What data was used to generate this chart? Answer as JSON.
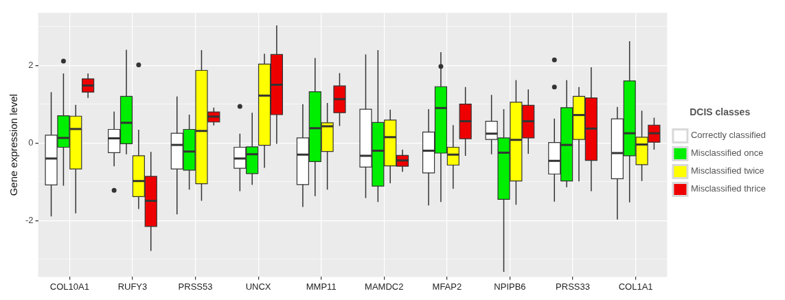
{
  "chart_data": {
    "type": "box",
    "ylabel": "Gene expression level",
    "legend_title": "DCIS classes",
    "legend": "right",
    "grid": true,
    "categories": [
      "COL10A1",
      "RUFY3",
      "PRSS53",
      "UNCX",
      "MMP11",
      "MAMDC2",
      "MFAP2",
      "NPIPB6",
      "PRSS33",
      "COL1A1"
    ],
    "ylim": [
      -3.45,
      3.35
    ],
    "yticks": [
      {
        "value": -3,
        "label": null
      },
      -2,
      {
        "value": -1,
        "label": null
      },
      0,
      {
        "value": 1,
        "label": null
      },
      2,
      {
        "value": 3,
        "label": null
      }
    ],
    "series": [
      {
        "name": "Correctly classified",
        "color": "#ffffff",
        "boxes": [
          {
            "low": -1.89,
            "q1": -1.08,
            "median": -0.4,
            "q3": 0.2,
            "high": 1.31
          },
          {
            "low": -0.6,
            "q1": -0.25,
            "median": 0.12,
            "q3": 0.35,
            "high": 0.81,
            "outliers": [
              -1.22
            ]
          },
          {
            "low": -1.84,
            "q1": -0.67,
            "median": -0.05,
            "q3": 0.25,
            "high": 1.2
          },
          {
            "low": -1.24,
            "q1": -0.65,
            "median": -0.4,
            "q3": -0.11,
            "high": 0.24,
            "outliers": [
              0.94
            ]
          },
          {
            "low": -1.65,
            "q1": -1.07,
            "median": -0.3,
            "q3": 0.13,
            "high": 1.0
          },
          {
            "low": -1.42,
            "q1": -0.62,
            "median": -0.33,
            "q3": 0.87,
            "high": 2.28
          },
          {
            "low": -1.61,
            "q1": -0.77,
            "median": -0.2,
            "q3": 0.28,
            "high": 0.87
          },
          {
            "low": -0.29,
            "q1": 0.09,
            "median": 0.24,
            "q3": 0.56,
            "high": 1.24
          },
          {
            "low": -1.51,
            "q1": -0.8,
            "median": -0.46,
            "q3": 0.01,
            "high": 0.63,
            "outliers": [
              2.14,
              1.44
            ]
          },
          {
            "low": -1.97,
            "q1": -0.92,
            "median": -0.26,
            "q3": 0.62,
            "high": 0.93
          }
        ]
      },
      {
        "name": "Misclassified once",
        "color": "#00ee00",
        "boxes": [
          {
            "low": -1.1,
            "q1": -0.11,
            "median": 0.13,
            "q3": 0.7,
            "high": 1.79,
            "outliers": [
              2.11
            ]
          },
          {
            "low": -0.29,
            "q1": -0.02,
            "median": 0.52,
            "q3": 1.2,
            "high": 2.4
          },
          {
            "low": -1.2,
            "q1": -0.7,
            "median": -0.22,
            "q3": 0.35,
            "high": 0.73
          },
          {
            "low": -1.08,
            "q1": -0.79,
            "median": -0.29,
            "q3": -0.1,
            "high": 0.78
          },
          {
            "low": -1.37,
            "q1": -0.48,
            "median": 0.38,
            "q3": 1.32,
            "high": 2.19
          },
          {
            "low": -1.52,
            "q1": -1.11,
            "median": -0.2,
            "q3": 0.53,
            "high": 2.39
          },
          {
            "low": -1.52,
            "q1": -0.26,
            "median": 0.9,
            "q3": 1.45,
            "high": 2.34,
            "outliers": [
              1.97
            ]
          },
          {
            "low": -3.32,
            "q1": -1.45,
            "median": -0.25,
            "q3": 0.13,
            "high": 0.87
          },
          {
            "low": -1.14,
            "q1": -0.98,
            "median": -0.05,
            "q3": 0.91,
            "high": 1.62
          },
          {
            "low": -1.53,
            "q1": -0.33,
            "median": 0.25,
            "q3": 1.6,
            "high": 2.62
          }
        ]
      },
      {
        "name": "Misclassified twice",
        "color": "#ffff00",
        "boxes": [
          {
            "low": -1.81,
            "q1": -0.67,
            "median": 0.36,
            "q3": 0.69,
            "high": 0.98
          },
          {
            "low": -1.7,
            "q1": -1.38,
            "median": -0.98,
            "q3": -0.33,
            "high": 0.34,
            "outliers": [
              2.01
            ]
          },
          {
            "low": -1.49,
            "q1": -1.05,
            "median": 0.31,
            "q3": 1.87,
            "high": 2.39
          },
          {
            "low": -0.64,
            "q1": -0.06,
            "median": 1.22,
            "q3": 2.03,
            "high": 2.3
          },
          {
            "low": -1.2,
            "q1": -0.22,
            "median": 0.43,
            "q3": 0.52,
            "high": 1.03
          },
          {
            "low": -1.04,
            "q1": -0.59,
            "median": 0.15,
            "q3": 0.59,
            "high": 0.86
          },
          {
            "low": -1.18,
            "q1": -0.57,
            "median": -0.3,
            "q3": -0.11,
            "high": 0.46
          },
          {
            "low": -1.59,
            "q1": -0.98,
            "median": 0.08,
            "q3": 1.05,
            "high": 1.62
          },
          {
            "low": -0.99,
            "q1": 0.09,
            "median": 0.72,
            "q3": 1.2,
            "high": 1.44
          },
          {
            "low": -0.98,
            "q1": -0.56,
            "median": -0.04,
            "q3": 0.15,
            "high": 0.83
          }
        ]
      },
      {
        "name": "Misclassified thrice",
        "color": "#ee0000",
        "boxes": [
          {
            "low": 1.16,
            "q1": 1.31,
            "median": 1.48,
            "q3": 1.65,
            "high": 1.79
          },
          {
            "low": -2.78,
            "q1": -2.15,
            "median": -1.49,
            "q3": -0.86,
            "high": -0.23
          },
          {
            "low": 0.45,
            "q1": 0.54,
            "median": 0.68,
            "q3": 0.8,
            "high": 0.91
          },
          {
            "low": -0.02,
            "q1": 0.73,
            "median": 1.5,
            "q3": 2.28,
            "high": 3.03
          },
          {
            "low": 0.44,
            "q1": 0.78,
            "median": 1.13,
            "q3": 1.47,
            "high": 1.8
          },
          {
            "low": -0.74,
            "q1": -0.6,
            "median": -0.45,
            "q3": -0.32,
            "high": -0.17
          },
          {
            "low": -0.33,
            "q1": 0.11,
            "median": 0.56,
            "q3": 1.0,
            "high": 1.44
          },
          {
            "low": -0.28,
            "q1": 0.13,
            "median": 0.56,
            "q3": 0.97,
            "high": 1.38
          },
          {
            "low": -1.24,
            "q1": -0.45,
            "median": 0.37,
            "q3": 1.16,
            "high": 1.95
          },
          {
            "low": -0.17,
            "q1": 0.02,
            "median": 0.25,
            "q3": 0.46,
            "high": 0.65
          }
        ]
      }
    ]
  }
}
